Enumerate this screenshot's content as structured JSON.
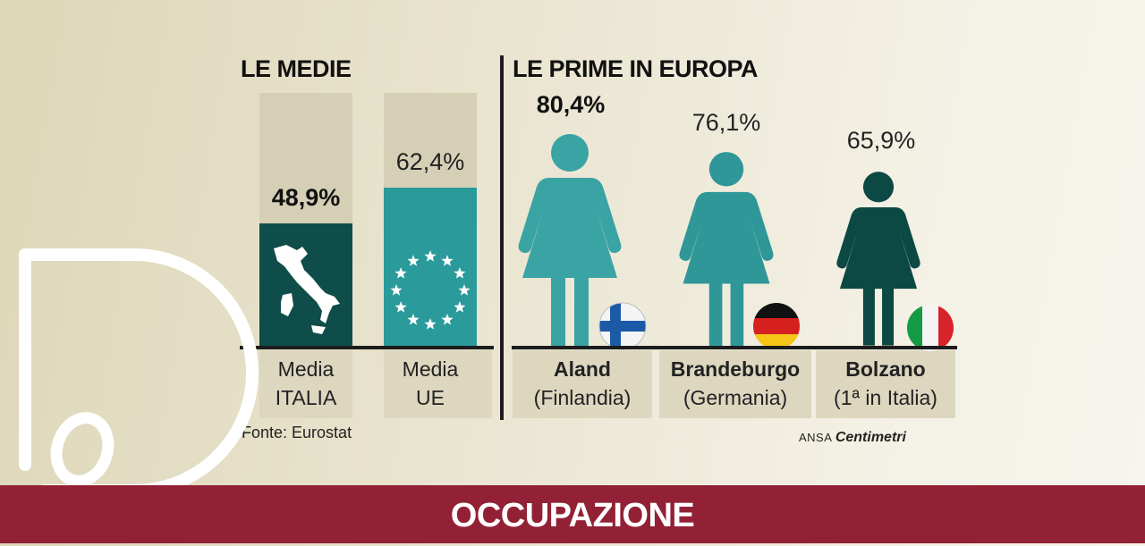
{
  "titles": {
    "left": "LE MEDIE",
    "right": "LE PRIME IN EUROPA"
  },
  "chart_data": {
    "type": "bar",
    "groups": [
      {
        "title": "LE MEDIE",
        "categories": [
          {
            "line1": "Media",
            "line2": "ITALIA",
            "value": 48.9,
            "label": "48,9%",
            "icon": "italy-map-icon"
          },
          {
            "line1": "Media",
            "line2": "UE",
            "value": 62.4,
            "label": "62,4%",
            "icon": "eu-stars-icon"
          }
        ]
      },
      {
        "title": "LE PRIME IN EUROPA",
        "categories": [
          {
            "line1": "Aland",
            "line2": "(Finlandia)",
            "value": 80.4,
            "label": "80,4%",
            "icon": "finland-flag-icon"
          },
          {
            "line1": "Brandeburgo",
            "line2": "(Germania)",
            "value": 76.1,
            "label": "76,1%",
            "icon": "germany-flag-icon"
          },
          {
            "line1": "Bolzano",
            "line2": "(1ª in Italia)",
            "value": 65.9,
            "label": "65,9%",
            "icon": "italy-flag-icon"
          }
        ]
      }
    ],
    "unit": "%",
    "ylim": [
      0,
      100
    ]
  },
  "source": "Fonte: Eurostat",
  "credit": {
    "agency": "ANSA",
    "brand": "Centimetri"
  },
  "footer": {
    "label": "OCCUPAZIONE"
  },
  "colors": {
    "italy_bar": "#0e4d49",
    "eu_bar": "#2a9a9b",
    "figure_aland": "#3aa3a4",
    "figure_brandeburgo": "#2f9798",
    "figure_bolzano": "#0c4844",
    "footer": "#922136"
  }
}
